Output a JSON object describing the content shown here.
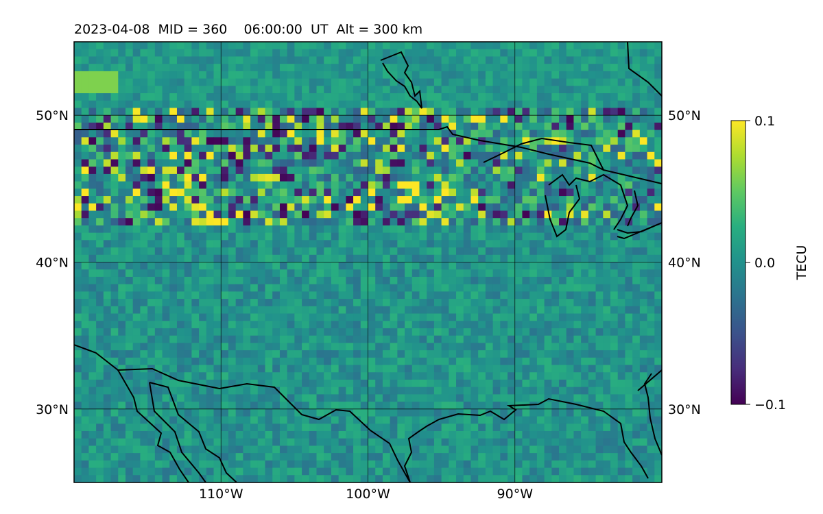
{
  "chart_data": {
    "type": "heatmap",
    "title": "2023-04-08  MID = 360    06:00:00  UT  Alt = 300 km",
    "xlabel": "",
    "ylabel": "",
    "xlim": [
      -120,
      -80
    ],
    "ylim": [
      25,
      55
    ],
    "x_ticks": [
      {
        "value": -110,
        "label": "110°W"
      },
      {
        "value": -100,
        "label": "100°W"
      },
      {
        "value": -90,
        "label": "90°W"
      }
    ],
    "y_ticks": [
      {
        "value": 50,
        "label": "50°N"
      },
      {
        "value": 40,
        "label": "40°N"
      },
      {
        "value": 30,
        "label": "30°N"
      }
    ],
    "grid": true,
    "colorbar": {
      "label": "TECU",
      "colormap": "viridis",
      "range": [
        -0.1,
        0.1
      ],
      "ticks": [
        {
          "value": 0.1,
          "label": "0.1"
        },
        {
          "value": 0.0,
          "label": "0.0"
        },
        {
          "value": -0.1,
          "label": "−0.1"
        }
      ]
    },
    "grid_resolution_deg": 0.5,
    "field_summary": [
      {
        "region": "lat 43-50N, lon 120-95W",
        "pattern": "strong mixed positive/negative perturbations",
        "value_range": [
          -0.1,
          0.1
        ]
      },
      {
        "region": "lat 43-48N, lon 105-95W",
        "pattern": "dense negative and positive cells, peak near -97.5E 45N",
        "value_range": [
          -0.1,
          0.1
        ]
      },
      {
        "region": "lat 25-42N",
        "pattern": "weak perturbations near zero",
        "value_range": [
          -0.03,
          0.04
        ]
      },
      {
        "region": "lat 50-55N",
        "pattern": "weak slightly positive background",
        "value_range": [
          -0.02,
          0.05
        ]
      }
    ]
  }
}
